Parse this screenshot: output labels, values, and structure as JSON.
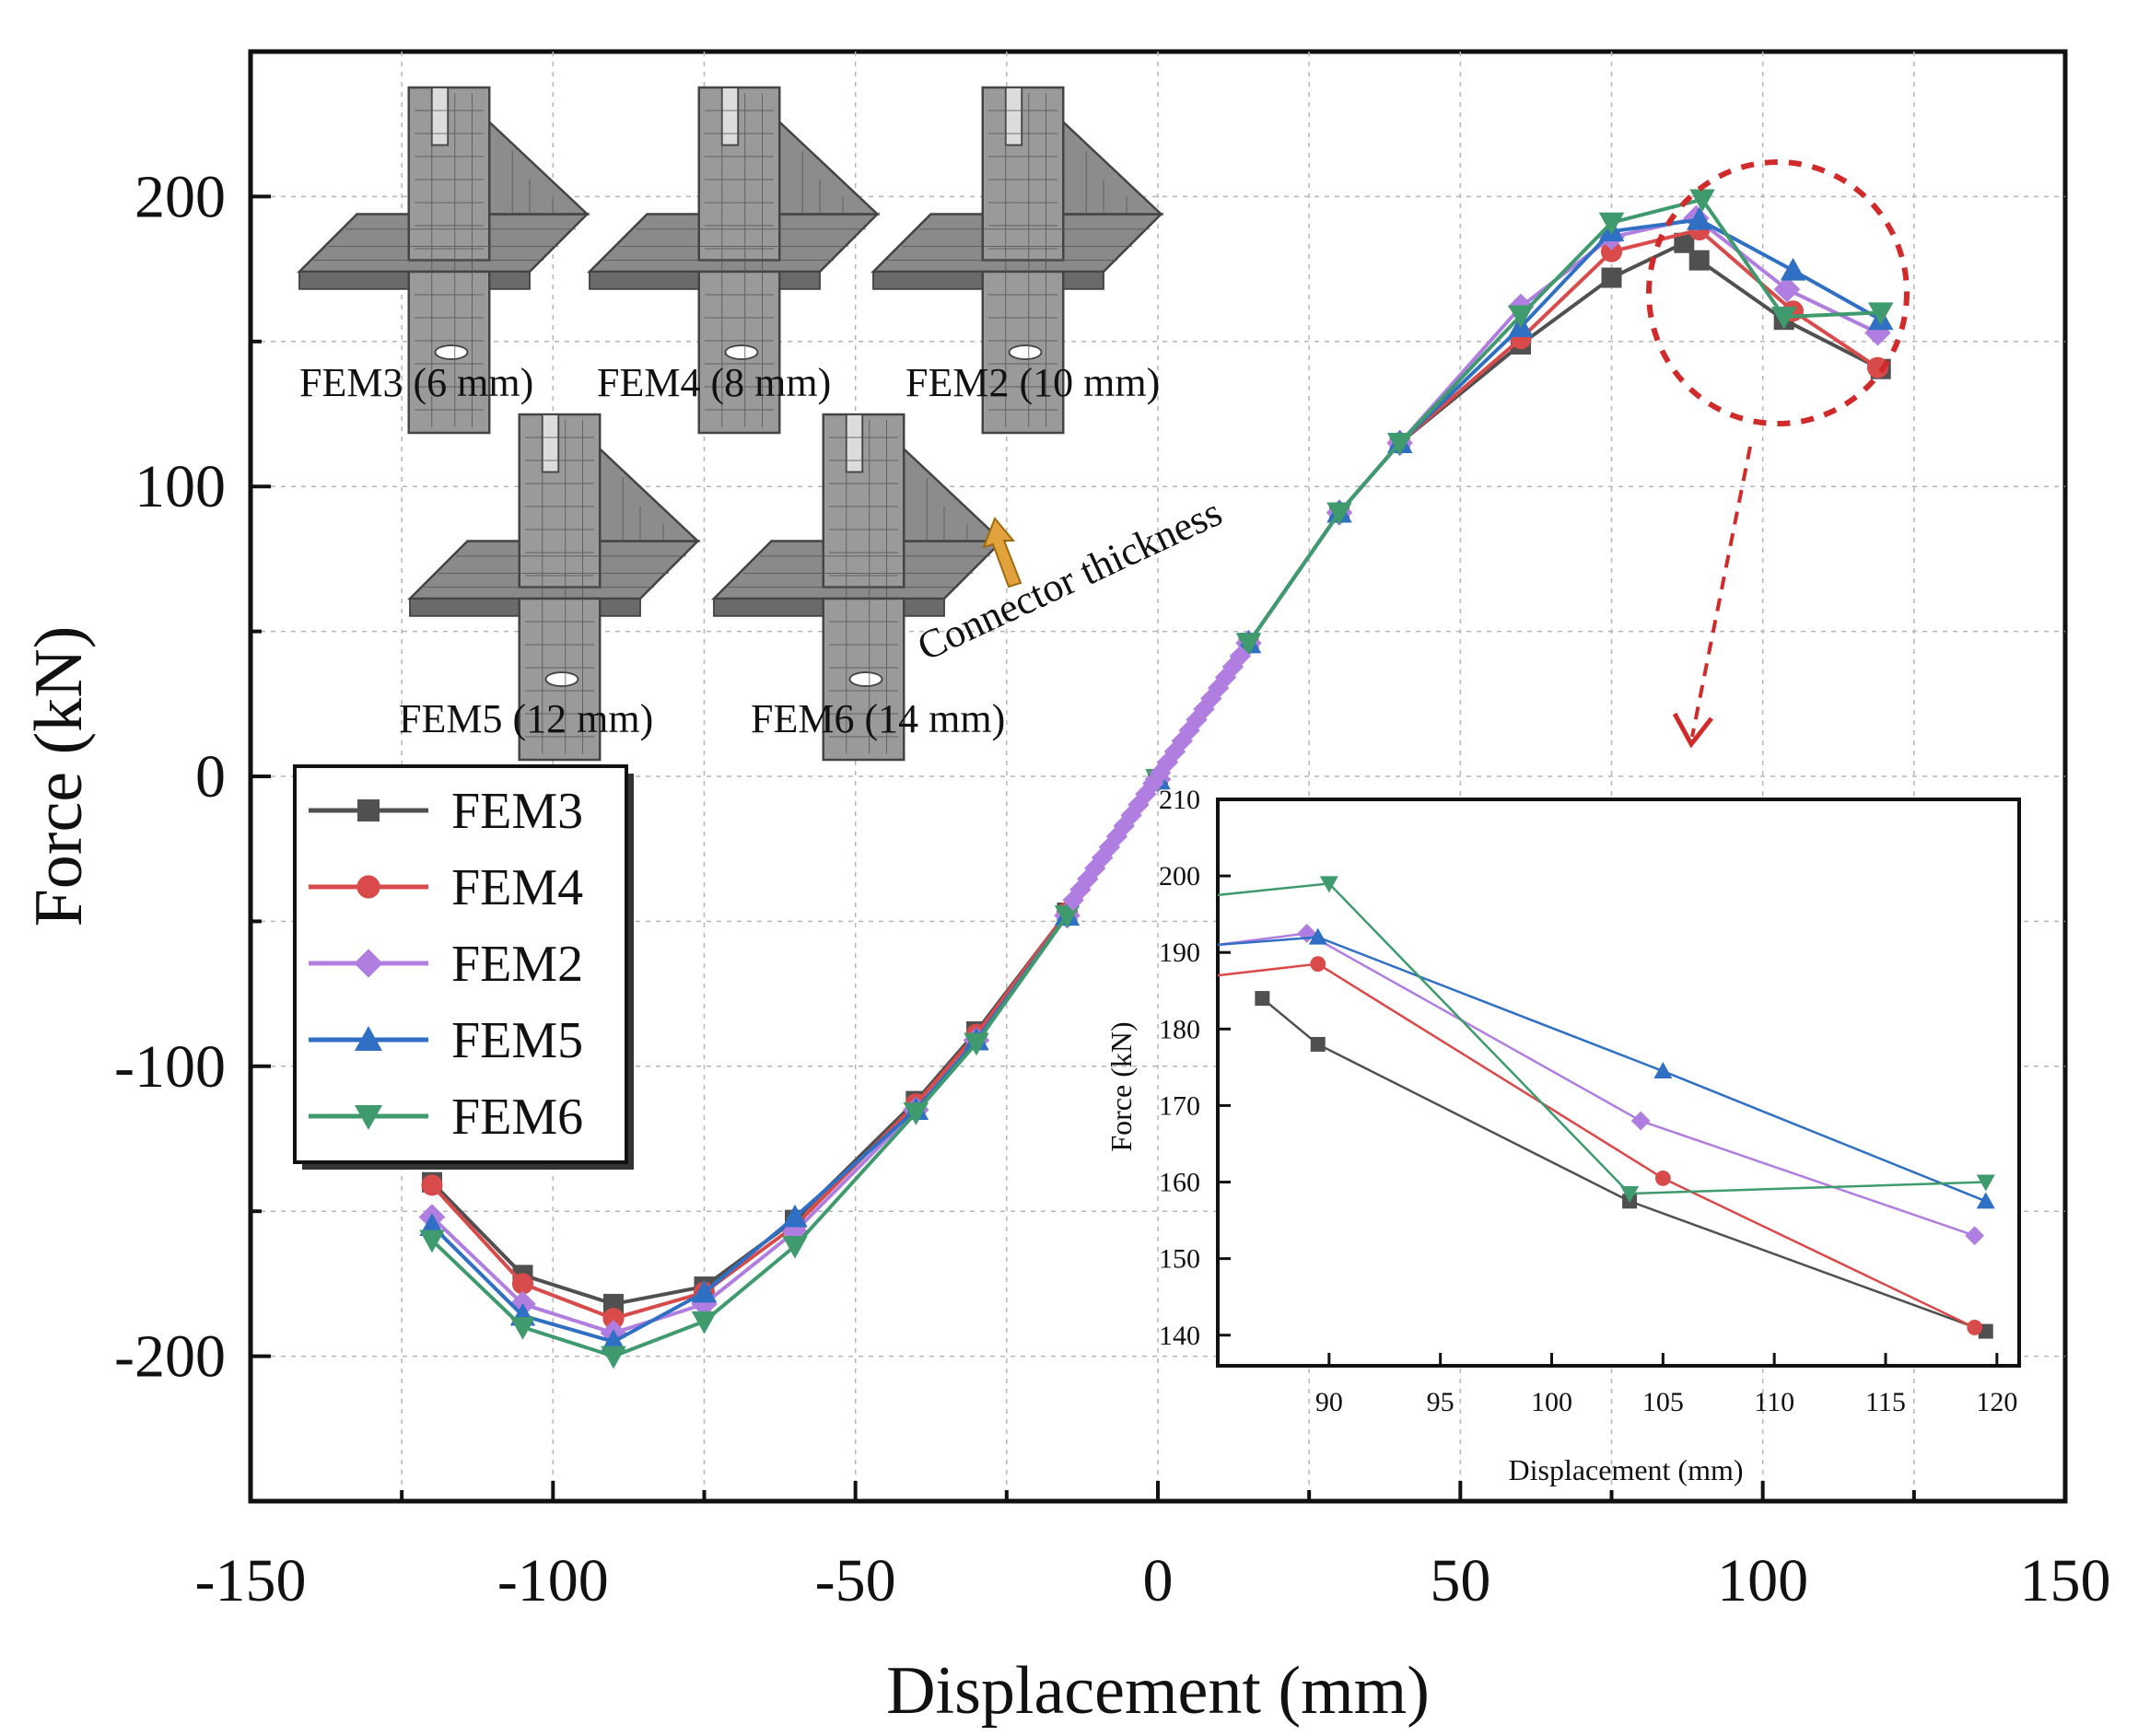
{
  "chart_data": {
    "type": "line",
    "main": {
      "xlabel": "Displacement (mm)",
      "ylabel": "Force (kN)",
      "xlim": [
        -150,
        150
      ],
      "ylim": [
        -250,
        250
      ],
      "xticks": [
        -150,
        -100,
        -50,
        0,
        50,
        100,
        150
      ],
      "yticks": [
        200,
        100,
        0,
        -100,
        -200
      ],
      "grid": true,
      "legend_position": "middle-left",
      "series": [
        {
          "name": "FEM3",
          "color": "#505050",
          "marker": "square",
          "x": [
            -120,
            -105,
            -90,
            -75,
            -60,
            -40,
            -30,
            -15,
            0,
            15,
            30,
            40,
            60,
            75,
            87,
            89.5,
            103.5,
            119.5
          ],
          "y": [
            -140,
            -172,
            -182,
            -176,
            -153,
            -112,
            -88,
            -47,
            -1,
            46,
            91,
            115,
            149,
            172,
            184,
            178,
            157.5,
            140.5
          ]
        },
        {
          "name": "FEM4",
          "color": "#d94a4a",
          "marker": "circle",
          "x": [
            -120,
            -105,
            -90,
            -75,
            -60,
            -40,
            -30,
            -15,
            0,
            15,
            30,
            40,
            60,
            75,
            89.5,
            105,
            119
          ],
          "y": [
            -141,
            -175,
            -187,
            -178,
            -155,
            -113,
            -89,
            -47,
            -1,
            46,
            91,
            115,
            151,
            181,
            188.5,
            160.5,
            141
          ]
        },
        {
          "name": "FEM2",
          "color": "#b07ee0",
          "marker": "diamond",
          "x": [
            -120,
            -105,
            -90,
            -75,
            -60,
            -40,
            -30,
            -15,
            0,
            15,
            30,
            40,
            60,
            75,
            89,
            104,
            119
          ],
          "y": [
            -152,
            -182,
            -192,
            -182,
            -157,
            -115,
            -91,
            -48,
            -1,
            46,
            91,
            115,
            162,
            186,
            192.5,
            168,
            153
          ]
        },
        {
          "name": "FEM5",
          "color": "#2f6fc4",
          "marker": "triangle-up",
          "x": [
            -120,
            -105,
            -90,
            -75,
            -60,
            -40,
            -30,
            -15,
            0,
            15,
            30,
            40,
            60,
            75,
            89.5,
            105,
            119.5
          ],
          "y": [
            -155,
            -186,
            -195,
            -178,
            -152,
            -115,
            -91,
            -48,
            -1,
            46,
            91,
            115,
            155,
            188,
            192,
            174.5,
            157.5
          ]
        },
        {
          "name": "FEM6",
          "color": "#3f9a6e",
          "marker": "triangle-down",
          "x": [
            -120,
            -105,
            -90,
            -75,
            -60,
            -40,
            -30,
            -15,
            0,
            15,
            30,
            40,
            60,
            75,
            90,
            103.5,
            119.5
          ],
          "y": [
            -160,
            -190,
            -200,
            -188,
            -162,
            -116,
            -92,
            -48,
            -1,
            46,
            91,
            115,
            159,
            191,
            199,
            158.5,
            160
          ]
        }
      ]
    },
    "inset": {
      "xlabel": "Displacement (mm)",
      "ylabel": "Force (kN)",
      "xlim": [
        85,
        121
      ],
      "ylim": [
        136,
        210
      ],
      "xticks": [
        90,
        95,
        100,
        105,
        110,
        115,
        120
      ],
      "yticks": [
        140,
        150,
        160,
        170,
        180,
        190,
        200,
        210
      ],
      "grid": false,
      "series": [
        {
          "name": "FEM3",
          "x": [
            87,
            89.5,
            103.5,
            119.5
          ],
          "y": [
            184,
            178,
            157.5,
            140.5
          ]
        },
        {
          "name": "FEM4",
          "x": [
            85,
            89.5,
            105,
            119
          ],
          "y": [
            187,
            188.5,
            160.5,
            141
          ]
        },
        {
          "name": "FEM2",
          "x": [
            85,
            89,
            104,
            119
          ],
          "y": [
            191,
            192.5,
            168,
            153
          ]
        },
        {
          "name": "FEM5",
          "x": [
            85,
            89.5,
            105,
            119.5
          ],
          "y": [
            191,
            192,
            174.5,
            157.5
          ]
        },
        {
          "name": "FEM6",
          "x": [
            85,
            90,
            103.5,
            119.5
          ],
          "y": [
            197.5,
            199,
            158.5,
            160
          ]
        }
      ]
    },
    "mesh_labels": [
      "FEM3 (6 mm)",
      "FEM4 (8 mm)",
      "FEM2 (10 mm)",
      "FEM5 (12 mm)",
      "FEM6 (14 mm)"
    ],
    "annotation": "Connector thickness",
    "annotation_color": "#e2a23c",
    "highlight_color": "#d02a2a"
  }
}
